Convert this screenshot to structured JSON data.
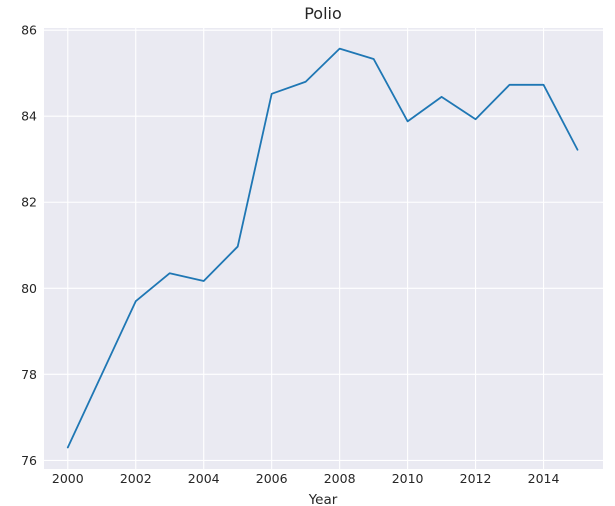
{
  "chart_data": {
    "type": "line",
    "title": "Polio",
    "xlabel": "Year",
    "ylabel": "",
    "x": [
      2000,
      2001,
      2002,
      2003,
      2004,
      2005,
      2006,
      2007,
      2008,
      2009,
      2010,
      2011,
      2012,
      2013,
      2014,
      2015
    ],
    "series": [
      {
        "values": [
          76.3,
          78.0,
          79.7,
          80.35,
          80.17,
          80.97,
          84.52,
          84.8,
          85.57,
          85.33,
          83.88,
          84.45,
          83.93,
          84.73,
          84.73,
          83.22
        ],
        "color": "#1f77b4"
      }
    ],
    "xlim": [
      1999.3,
      2015.75
    ],
    "ylim": [
      75.8,
      86.05
    ],
    "xticks": [
      "2000",
      "2002",
      "2004",
      "2006",
      "2008",
      "2010",
      "2012",
      "2014"
    ],
    "yticks": [
      "76",
      "78",
      "80",
      "82",
      "84",
      "86"
    ],
    "grid": true,
    "background_color": "#eaeaf2"
  }
}
